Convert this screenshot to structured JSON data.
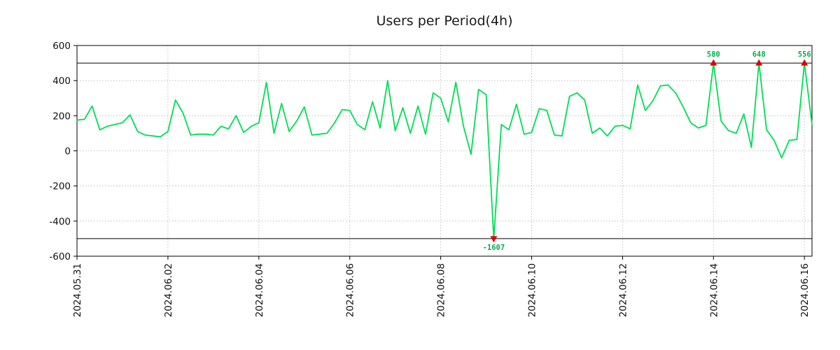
{
  "chart_data": {
    "type": "line",
    "title": "Users per Period(4h)",
    "xlabel": "",
    "ylabel": "",
    "period_hours": 4,
    "x_start_label": "2024.05.31",
    "x_tick_labels": [
      "2024.05.31",
      "2024.06.02",
      "2024.06.04",
      "2024.06.06",
      "2024.06.08",
      "2024.06.10",
      "2024.06.12",
      "2024.06.14",
      "2024.06.16"
    ],
    "x_tick_days": [
      0,
      2,
      4,
      6,
      8,
      10,
      12,
      14,
      16
    ],
    "y_ticks": [
      -600,
      -400,
      -200,
      0,
      200,
      400,
      600
    ],
    "ylim": [
      -600,
      600
    ],
    "clip_threshold": 500,
    "grid": true,
    "legend_position": "none",
    "line_color": "#00dd55",
    "marker_color": "#dd0000",
    "annotation_text_color": "#00b050",
    "grid_color": "#b3b3b3",
    "values": [
      175,
      180,
      255,
      120,
      140,
      150,
      160,
      205,
      110,
      90,
      85,
      80,
      110,
      290,
      215,
      90,
      95,
      95,
      90,
      140,
      125,
      200,
      105,
      140,
      160,
      390,
      100,
      270,
      110,
      170,
      250,
      90,
      95,
      100,
      160,
      235,
      230,
      150,
      120,
      280,
      130,
      400,
      115,
      245,
      100,
      255,
      95,
      330,
      300,
      165,
      390,
      140,
      -20,
      350,
      320,
      -1607,
      150,
      120,
      265,
      95,
      105,
      240,
      230,
      90,
      85,
      310,
      330,
      290,
      100,
      130,
      85,
      140,
      145,
      125,
      375,
      230,
      285,
      370,
      375,
      330,
      250,
      160,
      130,
      145,
      580,
      170,
      115,
      100,
      210,
      20,
      648,
      120,
      60,
      -40,
      60,
      65,
      556,
      150
    ],
    "annotations": [
      {
        "index": 55,
        "label": "-1607",
        "direction": "down"
      },
      {
        "index": 84,
        "label": "580",
        "direction": "up"
      },
      {
        "index": 90,
        "label": "648",
        "direction": "up"
      },
      {
        "index": 96,
        "label": "556",
        "direction": "up"
      }
    ]
  }
}
